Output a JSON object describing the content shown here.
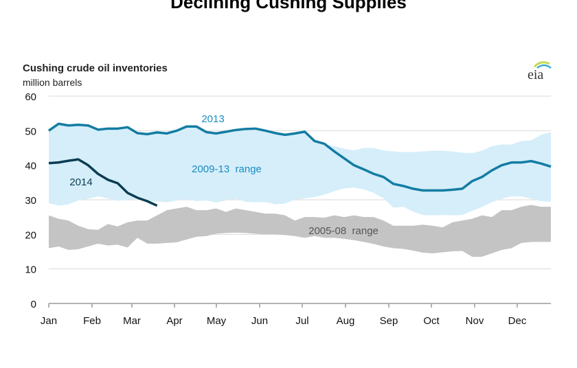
{
  "page_title": "Declining Cushing Supplies",
  "logo_text": "eia",
  "chart_data": {
    "type": "area",
    "title": "Cushing crude oil inventories",
    "ylabel": "million barrels",
    "xlabel": "",
    "ylim": [
      0,
      60
    ],
    "yticks": [
      0,
      10,
      20,
      30,
      40,
      50,
      60
    ],
    "xticks": [
      "Jan",
      "Feb",
      "Mar",
      "Apr",
      "May",
      "Jun",
      "Jul",
      "Aug",
      "Sep",
      "Oct",
      "Nov",
      "Dec"
    ],
    "x_unit": "week of year",
    "grid": true,
    "colors": {
      "line_2013": "#137ca3",
      "line_2014": "#0b3d52",
      "range_2009_13": "#d5eefa",
      "range_2005_08": "#c4c4c4",
      "label_2013": "#1a8cc0",
      "label_2014": "#0b3d52",
      "label_range_2005_08": "#555555"
    },
    "series": [
      {
        "name": "2009-13  range",
        "kind": "band",
        "upper": [
          50,
          52,
          51.5,
          51.7,
          51.5,
          50.3,
          50.6,
          50.6,
          51,
          49.3,
          49,
          49.5,
          49.2,
          50,
          51.2,
          51.2,
          49.6,
          49.2,
          49.7,
          50.2,
          50.5,
          50.6,
          50,
          49.3,
          48.8,
          49.2,
          49.7,
          47,
          46.2,
          45.5,
          44.8,
          44.3,
          45,
          45,
          44.3,
          44,
          43.8,
          43.8,
          44,
          44.2,
          44.2,
          44,
          43.6,
          43.5,
          44.2,
          45.5,
          46,
          46,
          47,
          47.2,
          48.8,
          49.6
        ],
        "lower": [
          29,
          28.3,
          28.7,
          29.8,
          30.3,
          31,
          30.4,
          29.7,
          30,
          30.3,
          29.6,
          29.5,
          29.3,
          29.8,
          30.2,
          29.6,
          29.8,
          29.2,
          29.8,
          30.3,
          29.4,
          29.3,
          29.3,
          28.7,
          28.9,
          30,
          30.4,
          30.8,
          31.5,
          32.5,
          33.3,
          33.5,
          33,
          32,
          30.4,
          27.7,
          28,
          26.6,
          25.6,
          25.5,
          25.6,
          25.5,
          25.6,
          26.8,
          27.9,
          29.3,
          30.3,
          31,
          31,
          30.3,
          29.6,
          29.4
        ]
      },
      {
        "name": "2005-08  range",
        "kind": "band",
        "upper": [
          25.5,
          24.5,
          24,
          22.5,
          21.5,
          21.3,
          23,
          22.3,
          23.5,
          24,
          24,
          25.5,
          27,
          27.5,
          28,
          27,
          27,
          27.5,
          26.5,
          27.5,
          27,
          26.5,
          26,
          26,
          25.5,
          24,
          25,
          25,
          24.8,
          25.5,
          25,
          25.5,
          25,
          25,
          24,
          22.5,
          22.5,
          22.5,
          22.8,
          22.5,
          22,
          23.5,
          24,
          24.5,
          25.5,
          25,
          27,
          27,
          28,
          28.5,
          28,
          28
        ],
        "lower": [
          16,
          16.5,
          15.5,
          15.7,
          16.5,
          17.3,
          16.8,
          17,
          16.2,
          19,
          17.3,
          17.3,
          17.5,
          17.7,
          18.5,
          19.3,
          19.5,
          20.2,
          20.4,
          20.5,
          20.4,
          20.2,
          20,
          20,
          19.8,
          19.5,
          19,
          19.5,
          19,
          19,
          18.7,
          18.3,
          17.8,
          17.2,
          16.5,
          16,
          15.8,
          15.3,
          14.7,
          14.5,
          14.8,
          15.1,
          15.2,
          13.5,
          13.5,
          14.5,
          15.5,
          16,
          17.5,
          17.8,
          17.8,
          17.8
        ]
      },
      {
        "name": "2013",
        "kind": "line",
        "values": [
          50,
          52,
          51.5,
          51.7,
          51.5,
          50.3,
          50.6,
          50.6,
          51,
          49.3,
          49,
          49.5,
          49.2,
          50,
          51.2,
          51.2,
          49.6,
          49.2,
          49.7,
          50.2,
          50.5,
          50.6,
          50,
          49.3,
          48.8,
          49.2,
          49.7,
          47,
          46.2,
          44,
          42,
          40,
          38.8,
          37.5,
          36.6,
          34.6,
          34,
          33.2,
          32.7,
          32.7,
          32.7,
          32.9,
          33.2,
          35.4,
          36.6,
          38.5,
          40,
          40.8,
          40.8,
          41.2,
          40.5,
          39.6
        ]
      },
      {
        "name": "2014",
        "kind": "line",
        "values": [
          40.6,
          40.8,
          41.3,
          41.7,
          40,
          37.5,
          35.8,
          34.8,
          32,
          30.6,
          29.6,
          28.3
        ]
      }
    ]
  }
}
